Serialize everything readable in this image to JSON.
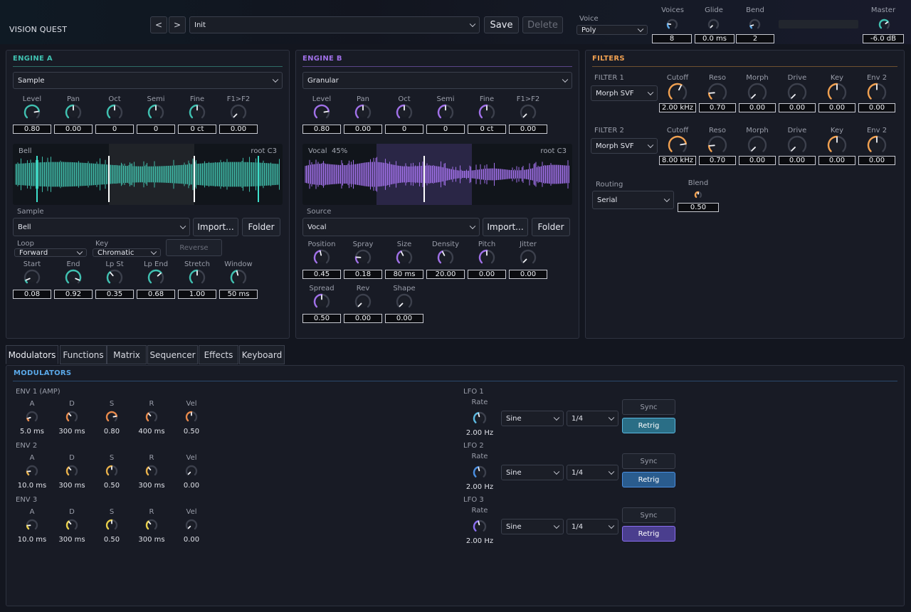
{
  "header": {
    "title": "VISION QUEST",
    "prev": "<",
    "next": ">",
    "preset": "Init",
    "save": "Save",
    "delete": "Delete",
    "voice_label": "Voice",
    "voice_mode": "Poly",
    "voices_label": "Voices",
    "voices": "8",
    "glide_label": "Glide",
    "glide": "0.0 ms",
    "bend_label": "Bend",
    "bend": "2",
    "master_label": "Master",
    "master": "-6.0 dB"
  },
  "engine_a": {
    "title": "ENGINE A",
    "type": "Sample",
    "knobs": [
      {
        "label": "Level",
        "value": "0.80",
        "pos": 0.8
      },
      {
        "label": "Pan",
        "value": "0.00",
        "pos": 0.5
      },
      {
        "label": "Oct",
        "value": "0",
        "pos": 0.5
      },
      {
        "label": "Semi",
        "value": "0",
        "pos": 0.5
      },
      {
        "label": "Fine",
        "value": "0 ct",
        "pos": 0.5
      },
      {
        "label": "F1>F2",
        "value": "0.00",
        "pos": 0.0
      }
    ],
    "wave_name": "Bell",
    "wave_root": "root C3",
    "sample_label": "Sample",
    "sample": "Bell",
    "import": "Import...",
    "folder": "Folder",
    "loop_label": "Loop",
    "loop": "Forward",
    "key_label": "Key",
    "key": "Chromatic",
    "reverse": "Reverse",
    "knobs2": [
      {
        "label": "Start",
        "value": "0.08",
        "pos": 0.08
      },
      {
        "label": "End",
        "value": "0.92",
        "pos": 0.92
      },
      {
        "label": "Lp St",
        "value": "0.35",
        "pos": 0.35
      },
      {
        "label": "Lp End",
        "value": "0.68",
        "pos": 0.68
      },
      {
        "label": "Stretch",
        "value": "1.00",
        "pos": 0.5
      },
      {
        "label": "Window",
        "value": "50 ms",
        "pos": 0.45
      }
    ]
  },
  "engine_b": {
    "title": "ENGINE B",
    "type": "Granular",
    "knobs": [
      {
        "label": "Level",
        "value": "0.80",
        "pos": 0.8
      },
      {
        "label": "Pan",
        "value": "0.00",
        "pos": 0.5
      },
      {
        "label": "Oct",
        "value": "0",
        "pos": 0.5
      },
      {
        "label": "Semi",
        "value": "0",
        "pos": 0.5
      },
      {
        "label": "Fine",
        "value": "0 ct",
        "pos": 0.5
      },
      {
        "label": "F1>F2",
        "value": "0.00",
        "pos": 0.0
      }
    ],
    "wave_name": "Vocal",
    "wave_pct": "45%",
    "wave_root": "root C3",
    "source_label": "Source",
    "source": "Vocal",
    "import": "Import...",
    "folder": "Folder",
    "knobs2": [
      {
        "label": "Position",
        "value": "0.45",
        "pos": 0.45
      },
      {
        "label": "Spray",
        "value": "0.18",
        "pos": 0.18
      },
      {
        "label": "Size",
        "value": "80 ms",
        "pos": 0.4
      },
      {
        "label": "Density",
        "value": "20.00",
        "pos": 0.4
      },
      {
        "label": "Pitch",
        "value": "0.00",
        "pos": 0.5
      },
      {
        "label": "Jitter",
        "value": "0.00",
        "pos": 0.0
      }
    ],
    "knobs3": [
      {
        "label": "Spread",
        "value": "0.50",
        "pos": 0.5
      },
      {
        "label": "Rev",
        "value": "0.00",
        "pos": 0.0
      },
      {
        "label": "Shape",
        "value": "0.00",
        "pos": 0.0
      }
    ]
  },
  "filters": {
    "title": "FILTERS",
    "f1_label": "FILTER 1",
    "f1_type": "Morph SVF",
    "f1_knobs": [
      {
        "label": "Cutoff",
        "value": "2.00 kHz",
        "pos": 0.6
      },
      {
        "label": "Reso",
        "value": "0.70",
        "pos": 0.15
      },
      {
        "label": "Morph",
        "value": "0.00",
        "pos": 0.0
      },
      {
        "label": "Drive",
        "value": "0.00",
        "pos": 0.0
      },
      {
        "label": "Key",
        "value": "0.00",
        "pos": 0.5
      },
      {
        "label": "Env 2",
        "value": "0.00",
        "pos": 0.5
      }
    ],
    "f2_label": "FILTER 2",
    "f2_type": "Morph SVF",
    "f2_knobs": [
      {
        "label": "Cutoff",
        "value": "8.00 kHz",
        "pos": 0.8
      },
      {
        "label": "Reso",
        "value": "0.70",
        "pos": 0.15
      },
      {
        "label": "Morph",
        "value": "0.00",
        "pos": 0.0
      },
      {
        "label": "Drive",
        "value": "0.00",
        "pos": 0.0
      },
      {
        "label": "Key",
        "value": "0.00",
        "pos": 0.5
      },
      {
        "label": "Env 2",
        "value": "0.00",
        "pos": 0.5
      }
    ],
    "routing_label": "Routing",
    "routing": "Serial",
    "blend_label": "Blend",
    "blend": "0.50"
  },
  "tabs": [
    "Modulators",
    "Functions",
    "Matrix",
    "Sequencer",
    "Effects",
    "Keyboard"
  ],
  "modulators": {
    "title": "MODULATORS",
    "envs": [
      {
        "label": "ENV 1 (AMP)",
        "color": "#e8894a",
        "knobs": [
          {
            "label": "A",
            "value": "5.0 ms",
            "pos": 0.1
          },
          {
            "label": "D",
            "value": "300 ms",
            "pos": 0.35
          },
          {
            "label": "S",
            "value": "0.80",
            "pos": 0.8
          },
          {
            "label": "R",
            "value": "400 ms",
            "pos": 0.35
          },
          {
            "label": "Vel",
            "value": "0.50",
            "pos": 0.5
          }
        ]
      },
      {
        "label": "ENV 2",
        "color": "#e8b04a",
        "knobs": [
          {
            "label": "A",
            "value": "10.0 ms",
            "pos": 0.15
          },
          {
            "label": "D",
            "value": "300 ms",
            "pos": 0.35
          },
          {
            "label": "S",
            "value": "0.50",
            "pos": 0.5
          },
          {
            "label": "R",
            "value": "300 ms",
            "pos": 0.35
          },
          {
            "label": "Vel",
            "value": "0.00",
            "pos": 0.0
          }
        ]
      },
      {
        "label": "ENV 3",
        "color": "#e8d04a",
        "knobs": [
          {
            "label": "A",
            "value": "10.0 ms",
            "pos": 0.15
          },
          {
            "label": "D",
            "value": "300 ms",
            "pos": 0.35
          },
          {
            "label": "S",
            "value": "0.50",
            "pos": 0.5
          },
          {
            "label": "R",
            "value": "300 ms",
            "pos": 0.35
          },
          {
            "label": "Vel",
            "value": "0.00",
            "pos": 0.0
          }
        ]
      }
    ],
    "lfos": [
      {
        "label": "LFO 1",
        "rate_label": "Rate",
        "rate": "2.00 Hz",
        "pos": 0.45,
        "color": "#5ab8e0",
        "shape": "Sine",
        "div": "1/4",
        "sync": "Sync",
        "retrig": "Retrig",
        "retrig_color": "#2a6e86"
      },
      {
        "label": "LFO 2",
        "rate_label": "Rate",
        "rate": "2.00 Hz",
        "pos": 0.45,
        "color": "#4a8ee0",
        "shape": "Sine",
        "div": "1/4",
        "sync": "Sync",
        "retrig": "Retrig",
        "retrig_color": "#2a5c8e"
      },
      {
        "label": "LFO 3",
        "rate_label": "Rate",
        "rate": "2.00 Hz",
        "pos": 0.45,
        "color": "#8a6ef0",
        "shape": "Sine",
        "div": "1/4",
        "sync": "Sync",
        "retrig": "Retrig",
        "retrig_color": "#4a3e8e"
      }
    ]
  },
  "colors": {
    "engine_a": "#3fc0b0",
    "engine_b": "#a070e8",
    "filters": "#f0a050",
    "mod": "#5aa8e8"
  }
}
